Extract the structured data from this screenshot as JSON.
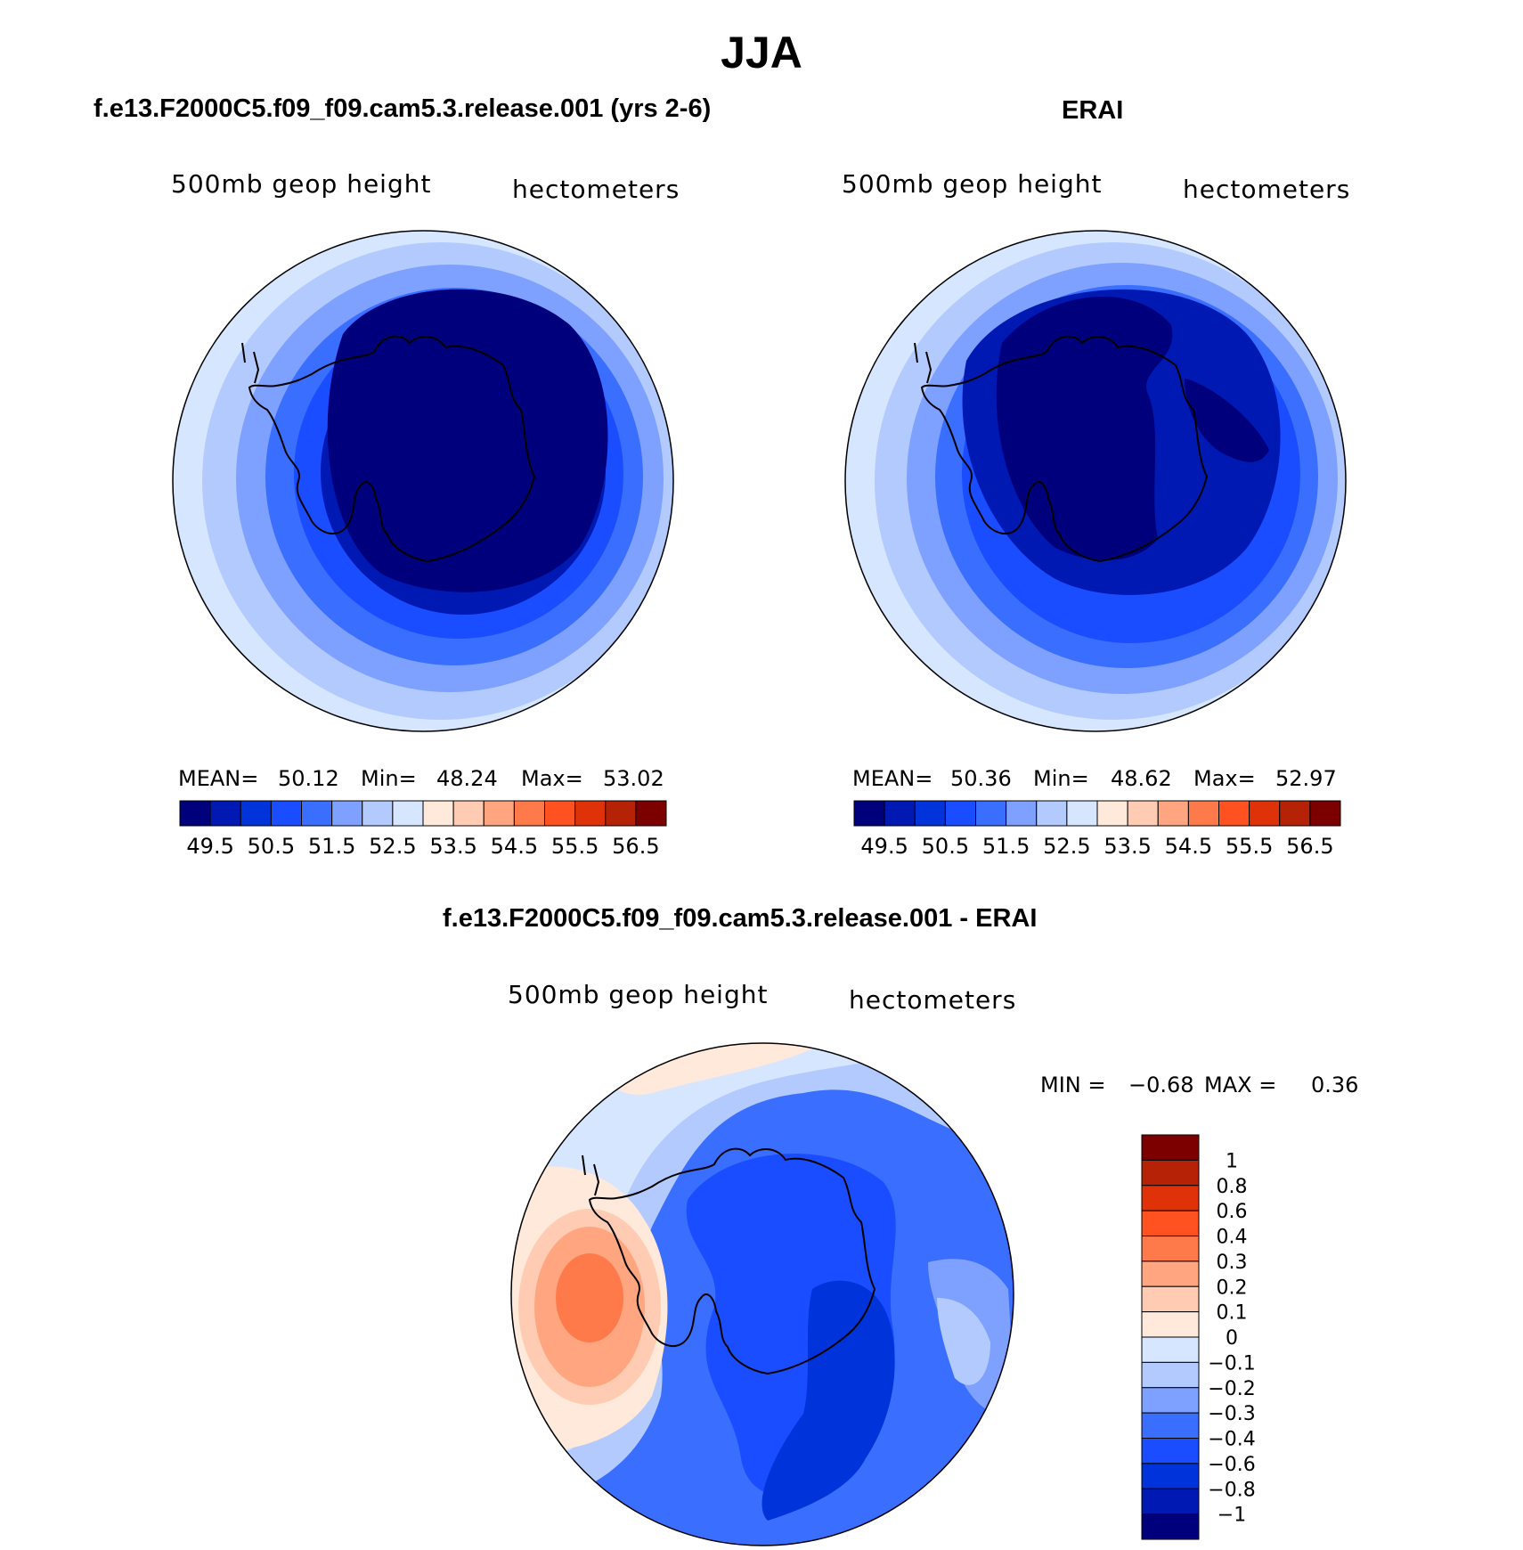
{
  "title": "JJA",
  "colors": {
    "full": [
      "#00007d",
      "#0019b3",
      "#0033d9",
      "#1a4dff",
      "#3a6eff",
      "#7ea0ff",
      "#b3caff",
      "#d6e6ff",
      "#ffe9db",
      "#ffcbb3",
      "#ffa57f",
      "#ff7a4b",
      "#ff5220",
      "#e03208",
      "#b52205",
      "#7d0000"
    ],
    "diff": [
      "#00007d",
      "#0019b3",
      "#0033d9",
      "#1a4dff",
      "#3a6eff",
      "#7ea0ff",
      "#b3caff",
      "#d6e6ff",
      "#ffe9db",
      "#ffcbb3",
      "#ffa57f",
      "#ff7a4b",
      "#ff5220",
      "#e03208",
      "#b52205",
      "#7d0000"
    ]
  },
  "panels": {
    "model": {
      "title": "f.e13.F2000C5.f09_f09.cam5.3.release.001 (yrs 2-6)",
      "variable": "500mb geop height",
      "units": "hectometers",
      "mean_label": "MEAN=",
      "mean": "50.12",
      "min_label": "Min=",
      "min": "48.24",
      "max_label": "Max=",
      "max": "53.02"
    },
    "obs": {
      "title": "ERAI",
      "variable": "500mb geop height",
      "units": "hectometers",
      "mean_label": "MEAN=",
      "mean": "50.36",
      "min_label": "Min=",
      "min": "48.62",
      "max_label": "Max=",
      "max": "52.97"
    },
    "diff": {
      "title": "f.e13.F2000C5.f09_f09.cam5.3.release.001 - ERAI",
      "variable": "500mb geop height",
      "units": "hectometers",
      "min_label": "MIN =",
      "min": "−0.68",
      "max_label": "MAX =",
      "max": "0.36"
    }
  },
  "colorbar_full": {
    "labels": [
      "49.5",
      "50.5",
      "51.5",
      "52.5",
      "53.5",
      "54.5",
      "55.5",
      "56.5"
    ],
    "levels": [
      49,
      49.5,
      50,
      50.5,
      51,
      51.5,
      52,
      52.5,
      53,
      53.5,
      54,
      54.5,
      55,
      55.5,
      56,
      56.5
    ]
  },
  "colorbar_diff": {
    "labels": [
      "1",
      "0.8",
      "0.6",
      "0.4",
      "0.3",
      "0.2",
      "0.1",
      "0",
      "−0.1",
      "−0.2",
      "−0.3",
      "−0.4",
      "−0.6",
      "−0.8",
      "−1"
    ]
  }
}
